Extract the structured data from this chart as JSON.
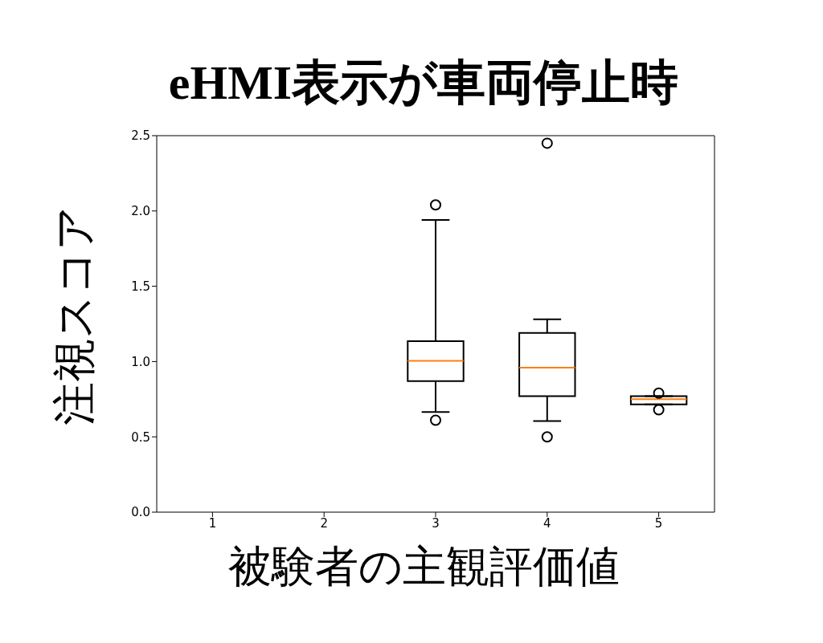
{
  "chart_data": {
    "type": "box",
    "title": "eHMI表示が車両停止時",
    "xlabel": "被験者の主観評価値",
    "ylabel": "注視スコア",
    "categories": [
      "1",
      "2",
      "3",
      "4",
      "5"
    ],
    "color": "#000000",
    "boxes": [
      null,
      null,
      {
        "low": 0.665,
        "q1": 0.87,
        "median": 1.005,
        "q3": 1.135,
        "high": 1.94,
        "outliers": [
          2.04,
          0.61
        ]
      },
      {
        "low": 0.605,
        "q1": 0.77,
        "median": 0.96,
        "q3": 1.19,
        "high": 1.28,
        "outliers": [
          2.45,
          0.5
        ]
      },
      {
        "low": 0.715,
        "q1": 0.715,
        "median": 0.75,
        "q3": 0.77,
        "high": 0.77,
        "outliers": [
          0.79,
          0.68
        ]
      }
    ],
    "ylim": [
      0,
      2.5
    ],
    "yticks": [
      {
        "value": 0,
        "label": "0.0"
      },
      0.5,
      {
        "value": 1,
        "label": "1.0"
      },
      1.5,
      {
        "value": 2,
        "label": "2.0"
      },
      2.5
    ],
    "grid": false
  }
}
